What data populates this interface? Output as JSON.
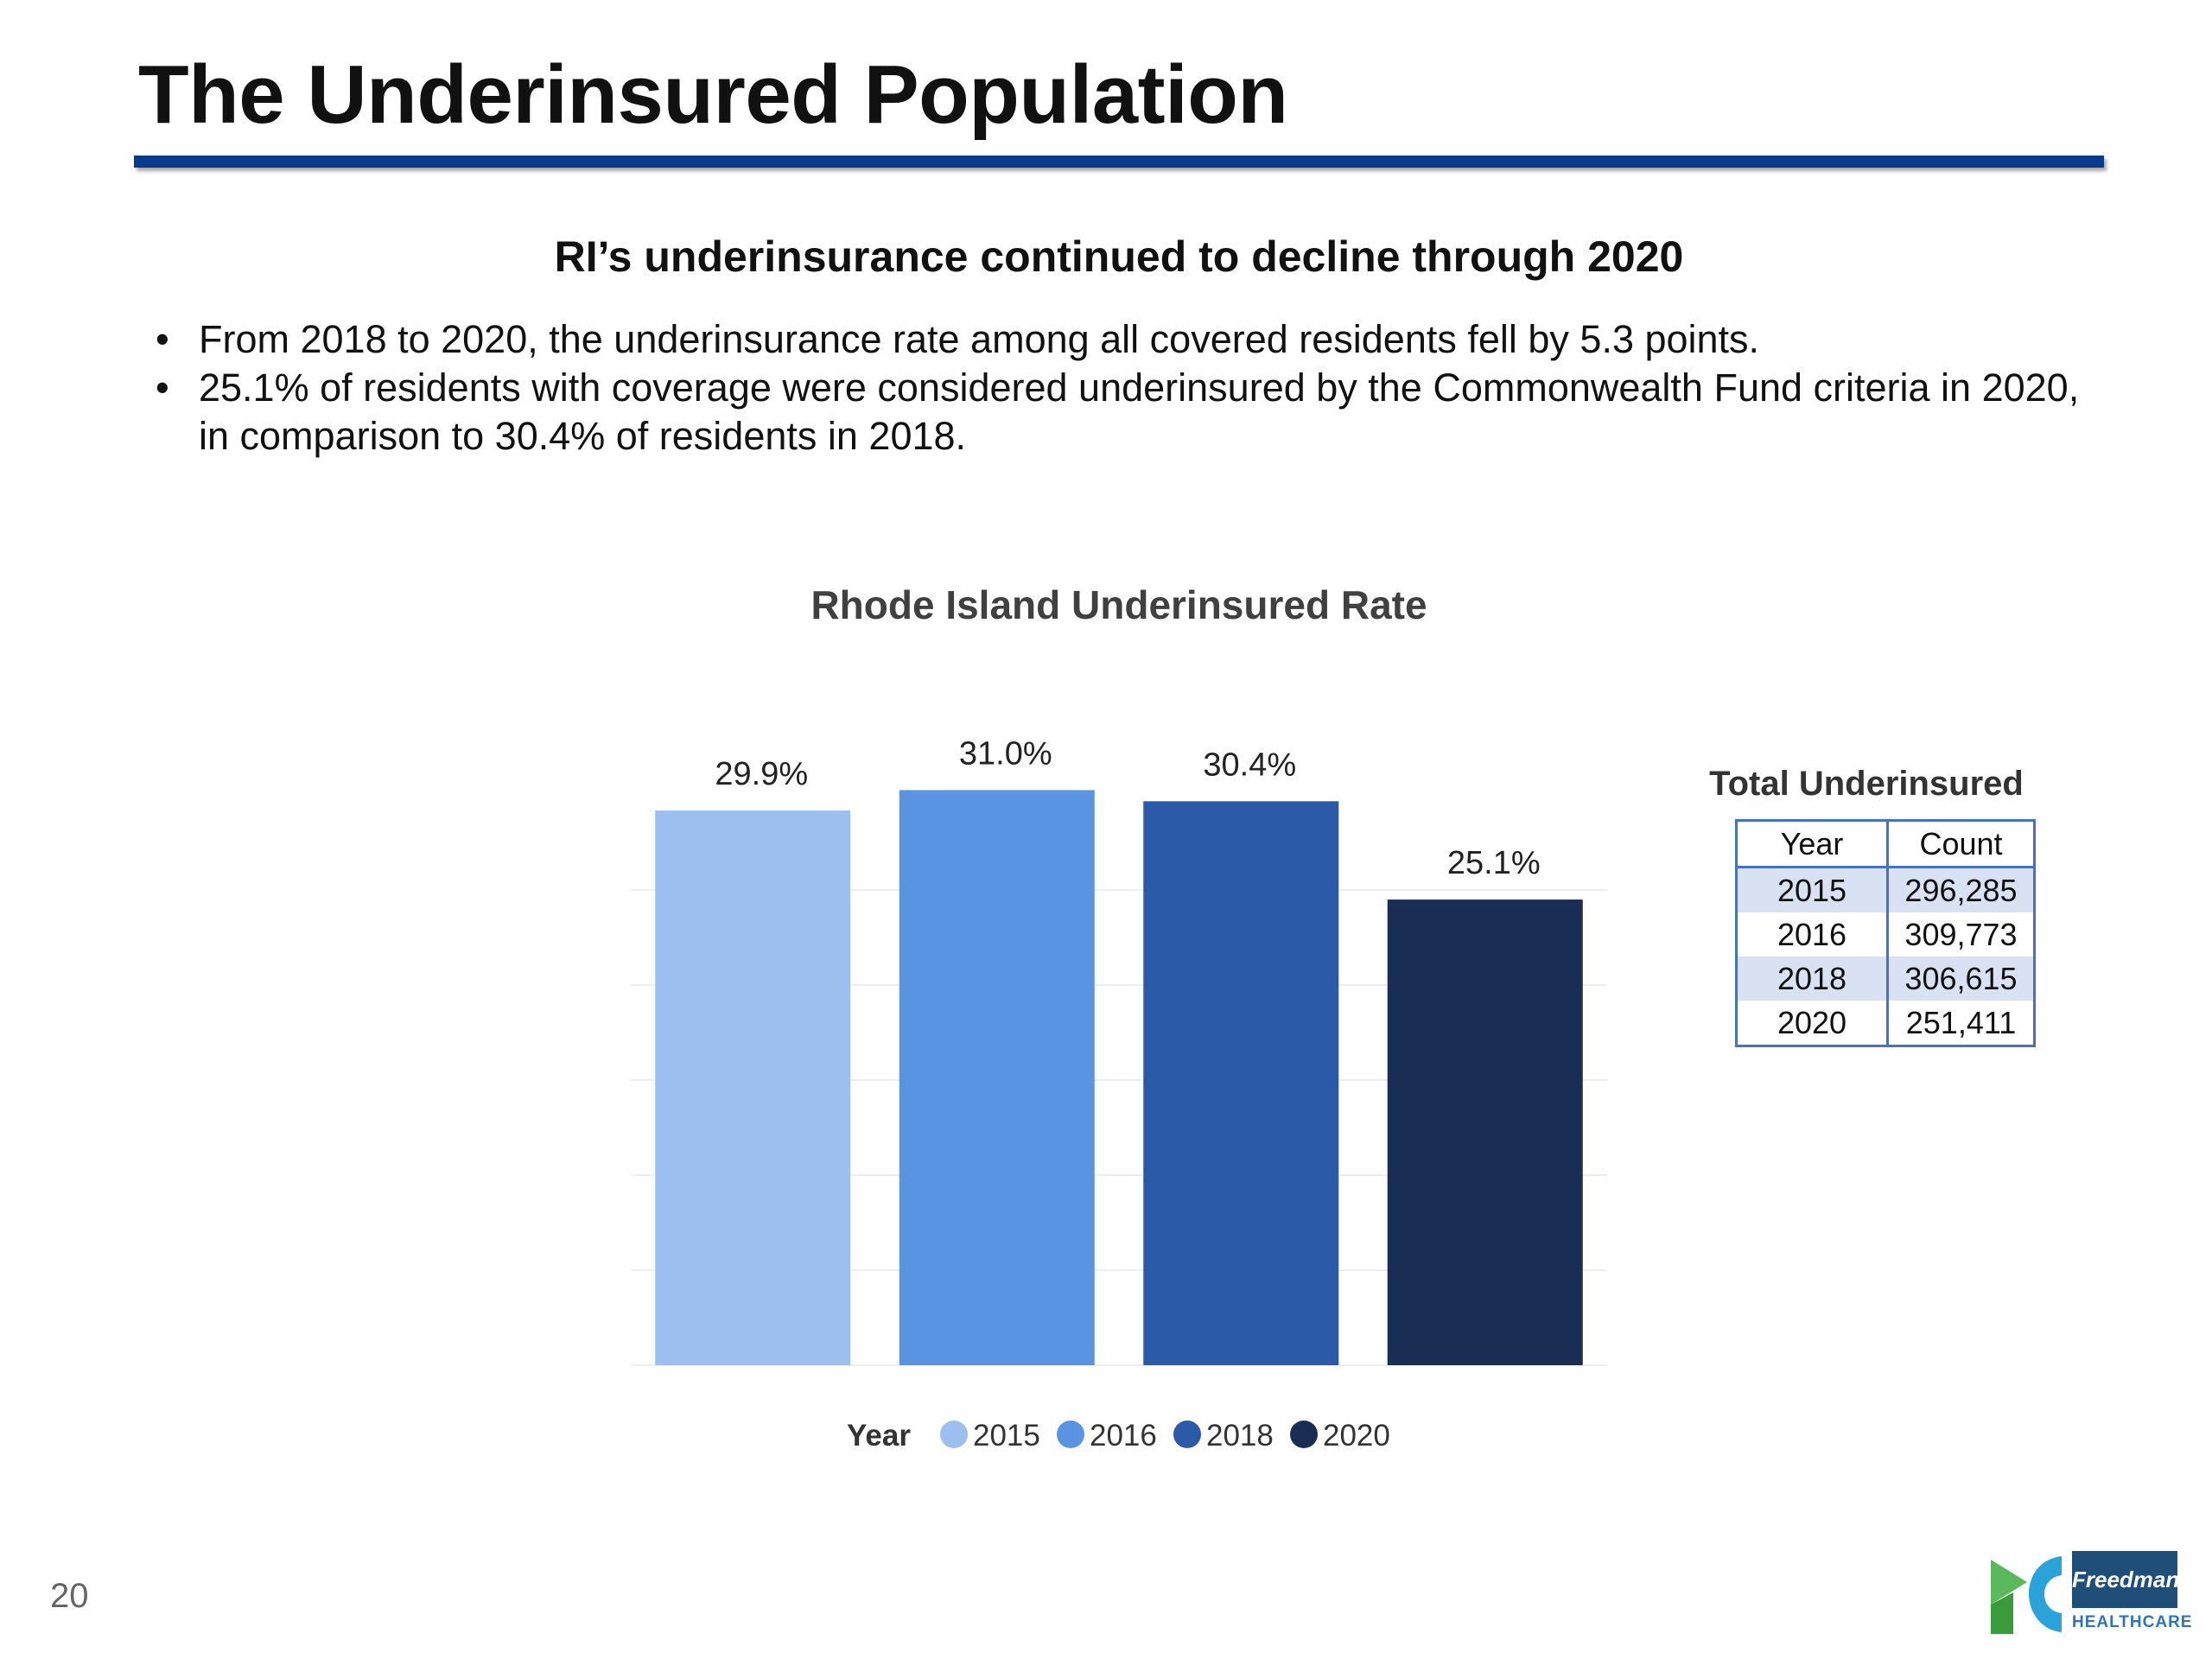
{
  "slide": {
    "title": "The Underinsured Population",
    "subtitle": "RI’s underinsurance continued to decline through 2020",
    "bullets": [
      "From 2018 to 2020, the underinsurance rate among all covered residents fell by 5.3 points.",
      "25.1% of residents with coverage were considered underinsured by the Commonwealth Fund criteria in 2020, in comparison to 30.4% of residents in 2018."
    ],
    "bullet_marker": "•",
    "page_number": "20"
  },
  "chart_data": {
    "type": "bar",
    "title": "Rhode Island Underinsured Rate",
    "categories": [
      "2015",
      "2016",
      "2018",
      "2020"
    ],
    "values": [
      29.9,
      31.0,
      30.4,
      25.1
    ],
    "data_labels": [
      "29.9%",
      "31.0%",
      "30.4%",
      "25.1%"
    ],
    "colors": [
      "#9dbff0",
      "#5894e2",
      "#2b5aa8",
      "#1a2d55"
    ],
    "legend_title": "Year",
    "legend_position": "bottom",
    "ylim": [
      0,
      36
    ],
    "grid": true
  },
  "table": {
    "title": "Total Underinsured",
    "headers": [
      "Year",
      "Count"
    ],
    "rows": [
      [
        "2015",
        "296,285"
      ],
      [
        "2016",
        "309,773"
      ],
      [
        "2018",
        "306,615"
      ],
      [
        "2020",
        "251,411"
      ]
    ],
    "border_color": "#4472c4",
    "shade_color": "#d9e2f3"
  },
  "logos": {
    "left_icon": "healthsource-ri-logo",
    "right_brand": "Freedman",
    "right_sub": "HEALTHCARE"
  }
}
